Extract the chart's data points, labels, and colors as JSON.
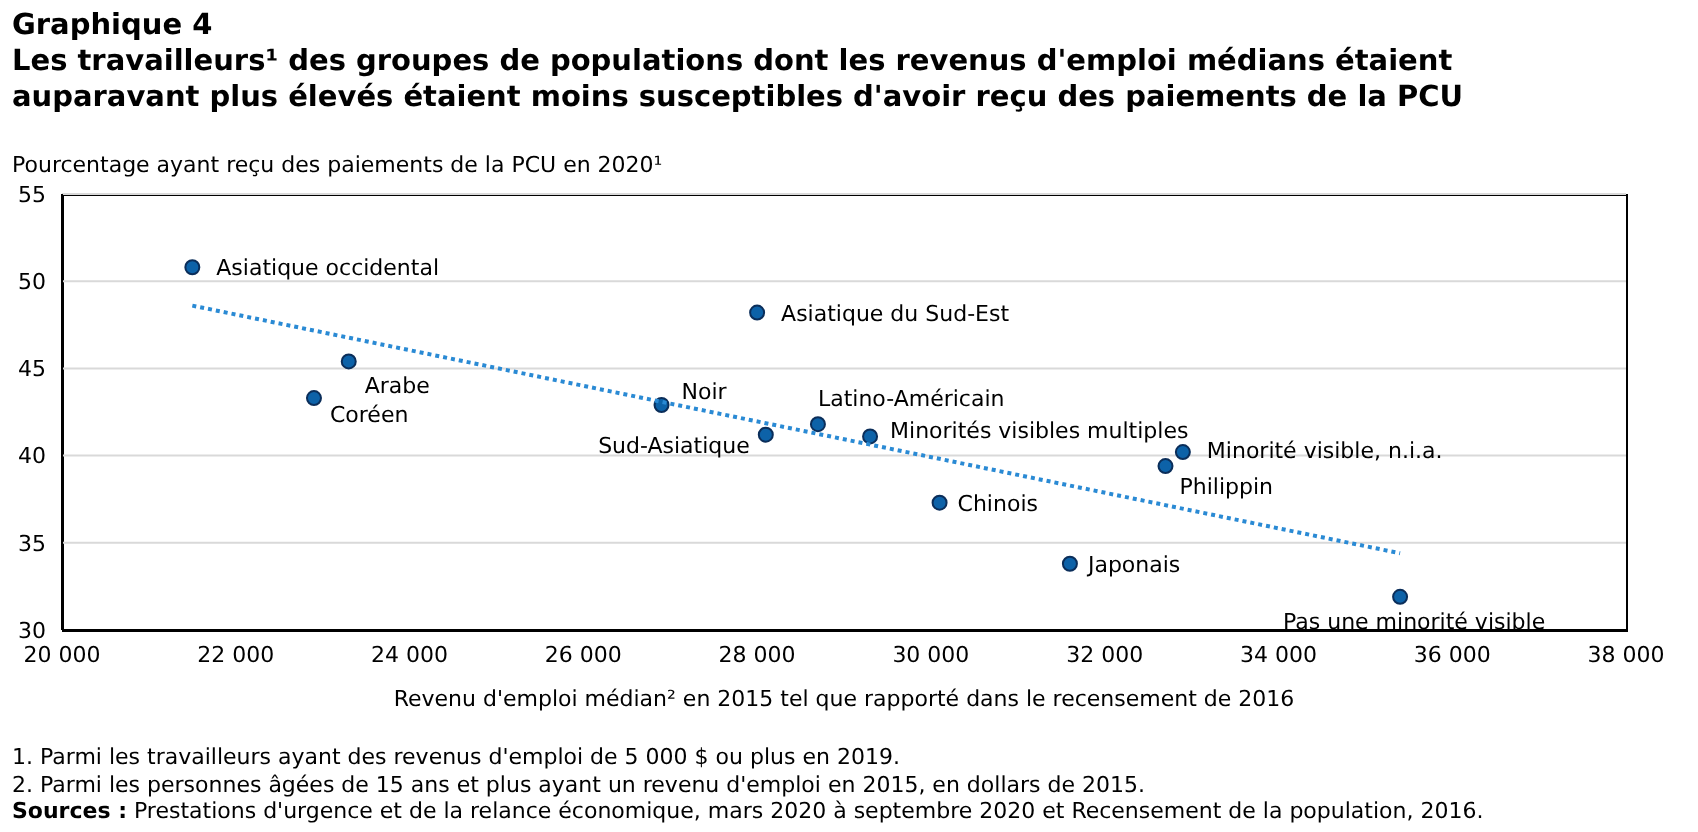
{
  "chart_data": {
    "type": "scatter",
    "title": "Graphique 4",
    "subtitle": "Les travailleurs¹ des groupes de populations dont les revenus d'emploi médians étaient auparavant plus élevés étaient moins susceptibles d'avoir reçu des paiements de la PCU",
    "ylabel": "Pourcentage ayant reçu des paiements de la PCU en 2020¹",
    "xlabel": "Revenu d'emploi médian² en 2015 tel que rapporté dans le recensement de 2016",
    "series": [
      {
        "color": "#0d62a8",
        "marker": "circle",
        "x": [
          21500,
          28000,
          23300,
          22900,
          26900,
          28100,
          28700,
          29300,
          30100,
          31600,
          32700,
          32900,
          35400
        ],
        "values": [
          50.8,
          48.2,
          45.4,
          43.3,
          42.9,
          41.2,
          41.8,
          41.1,
          37.3,
          33.8,
          39.4,
          40.2,
          31.9
        ]
      },
      {
        "type": "line",
        "color": "#2a8ad4",
        "line_style": "dotted",
        "x": [
          21500,
          35400
        ],
        "values": [
          48.6,
          34.4
        ]
      }
    ],
    "xlim": [
      20000,
      38000
    ],
    "xticks": [
      {
        "value": 20000,
        "label": "20 000"
      },
      {
        "value": 22000,
        "label": "22 000"
      },
      {
        "value": 24000,
        "label": "24 000"
      },
      {
        "value": 26000,
        "label": "26 000"
      },
      {
        "value": 28000,
        "label": "28 000"
      },
      {
        "value": 30000,
        "label": "30 000"
      },
      {
        "value": 32000,
        "label": "32 000"
      },
      {
        "value": 34000,
        "label": "34 000"
      },
      {
        "value": 36000,
        "label": "36 000"
      },
      {
        "value": 38000,
        "label": "38 000"
      }
    ],
    "ylim": [
      30,
      55
    ],
    "yticks": [
      30,
      35,
      40,
      45,
      50,
      55
    ],
    "grid": "y",
    "annotations": [
      {
        "text": "Asiatique occidental",
        "x": 21500,
        "y": 50.8
      },
      {
        "text": "Asiatique du Sud-Est",
        "x": 28000,
        "y": 48.2
      },
      {
        "text": "Arabe",
        "x": 23300,
        "y": 45.4
      },
      {
        "text": "Coréen",
        "x": 22900,
        "y": 43.3
      },
      {
        "text": "Noir",
        "x": 26900,
        "y": 42.9
      },
      {
        "text": "Sud-Asiatique",
        "x": 28100,
        "y": 41.2
      },
      {
        "text": "Latino-Américain",
        "x": 28700,
        "y": 41.8
      },
      {
        "text": "Minorités visibles multiples",
        "x": 29300,
        "y": 41.1
      },
      {
        "text": "Chinois",
        "x": 30100,
        "y": 37.3
      },
      {
        "text": "Japonais",
        "x": 31600,
        "y": 33.8
      },
      {
        "text": "Philippin",
        "x": 32700,
        "y": 39.4
      },
      {
        "text": "Minorité visible, n.i.a.",
        "x": 32900,
        "y": 40.2
      },
      {
        "text": "Pas une minorité visible",
        "x": 35400,
        "y": 31.9
      },
      "1. Parmi les travailleurs ayant des revenus d'emploi de 5 000 $ ou plus en 2019.",
      "2. Parmi les personnes âgées de 15 ans et plus ayant un revenu d'emploi en 2015, en dollars de 2015.",
      "Sources : Prestations d'urgence et de la relance économique, mars 2020 à septembre 2020 et Recensement de la population, 2016."
    ]
  }
}
